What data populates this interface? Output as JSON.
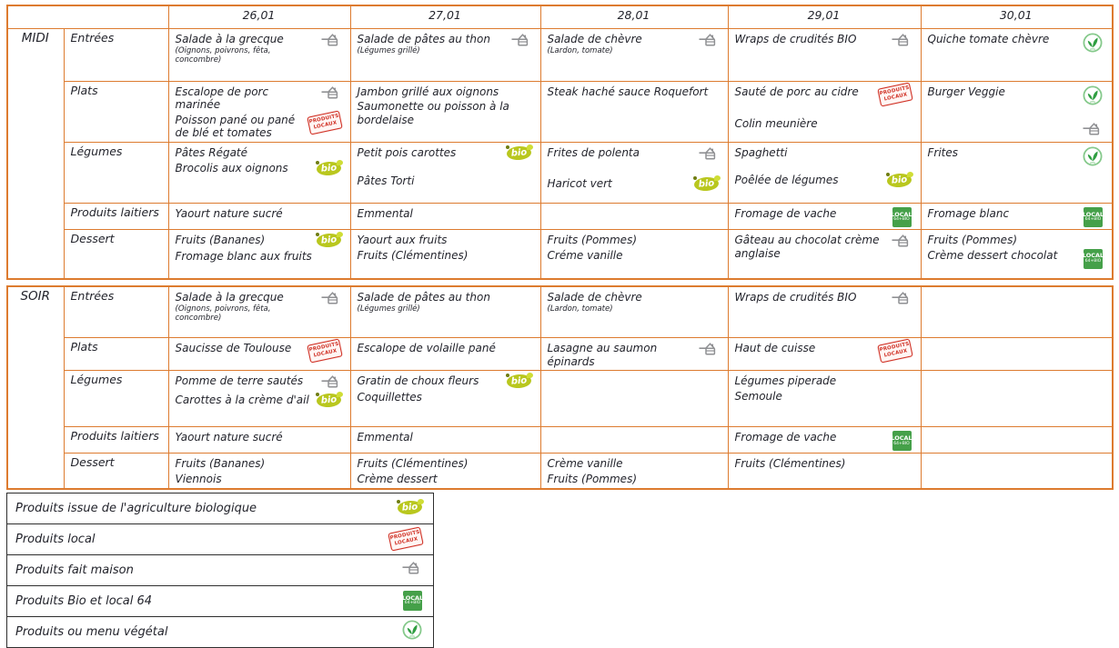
{
  "colors": {
    "table_border": "#dd7b2f",
    "text": "#23242c",
    "legend_border": "#2e2e2e",
    "bio_green": "#b9c71e",
    "stamp_red": "#d03024",
    "local64_green": "#45a049",
    "vegetal_green": "#2f9e41",
    "fait_maison_gray": "#8f9093"
  },
  "days": [
    "26,01",
    "27,01",
    "28,01",
    "29,01",
    "30,01"
  ],
  "icons": {
    "bio": {
      "label": "bio"
    },
    "local-stamp": {
      "line1": "PRODUITS",
      "line2": "LOCAUX"
    },
    "local64": {
      "line1": "LOCAL",
      "line2": "64+BIO"
    },
    "fait-maison": {
      "label": "fait maison"
    },
    "vegetal": {
      "label": "végétal"
    }
  },
  "sections": [
    {
      "label": "MIDI",
      "rows": [
        {
          "label": "Entrées",
          "cells": [
            [
              {
                "text": "Salade à la grecque",
                "icon": "fait-maison",
                "sub": "(Oignons, poivrons, fêta, concombre)"
              }
            ],
            [
              {
                "text": "Salade de pâtes au thon",
                "icon": "fait-maison",
                "sub": "(Légumes grillé)"
              }
            ],
            [
              {
                "text": "Salade de chèvre",
                "icon": "fait-maison",
                "sub": "(Lardon, tomate)"
              }
            ],
            [
              {
                "text": "Wraps de crudités BIO",
                "icon": "fait-maison"
              }
            ],
            [
              {
                "text": "Quiche tomate chèvre",
                "icon": "vegetal"
              }
            ]
          ]
        },
        {
          "label": "Plats",
          "cells": [
            [
              {
                "text": "Escalope de porc marinée",
                "icon": "fait-maison"
              },
              {
                "text": "Poisson pané ou pané de blé et tomates",
                "icon": "local-stamp"
              }
            ],
            [
              {
                "text": "Jambon grillé aux oignons"
              },
              {
                "text": "Saumonette ou poisson à la bordelaise"
              }
            ],
            [
              {
                "text": "Steak haché sauce Roquefort"
              }
            ],
            [
              {
                "text": "Sauté de porc au cidre",
                "icon": "local-stamp"
              },
              {
                "text": "Colin meunière",
                "gap": true
              }
            ],
            [
              {
                "text": "Burger Veggie",
                "icon": "vegetal"
              },
              {
                "text": "",
                "icon": "fait-maison",
                "gap": true
              }
            ]
          ]
        },
        {
          "label": "Légumes",
          "cells": [
            [
              {
                "text": "Pâtes Régaté"
              },
              {
                "text": "Brocolis aux oignons",
                "icon": "bio"
              }
            ],
            [
              {
                "text": "Petit pois carottes",
                "icon": "bio"
              },
              {
                "text": "Pâtes Torti",
                "gap": true
              }
            ],
            [
              {
                "text": "Frites de polenta",
                "icon": "fait-maison"
              },
              {
                "text": "Haricot vert",
                "icon": "bio",
                "gap": true
              }
            ],
            [
              {
                "text": "Spaghetti"
              },
              {
                "text": "Poêlée de légumes",
                "icon": "bio",
                "gap": true
              }
            ],
            [
              {
                "text": "Frites",
                "icon": "vegetal"
              }
            ]
          ]
        },
        {
          "label": "Produits laitiers",
          "cells": [
            [
              {
                "text": "Yaourt nature sucré"
              }
            ],
            [
              {
                "text": "Emmental"
              }
            ],
            [],
            [
              {
                "text": "Fromage de vache",
                "icon": "local64"
              }
            ],
            [
              {
                "text": "Fromage blanc",
                "icon": "local64"
              }
            ]
          ]
        },
        {
          "label": "Dessert",
          "cells": [
            [
              {
                "text": "Fruits (Bananes)",
                "icon": "bio"
              },
              {
                "text": "Fromage blanc aux fruits"
              }
            ],
            [
              {
                "text": "Yaourt aux fruits"
              },
              {
                "text": "Fruits (Clémentines)"
              }
            ],
            [
              {
                "text": "Fruits (Pommes)"
              },
              {
                "text": "Créme vanille"
              }
            ],
            [
              {
                "text": "Gâteau au chocolat crème anglaise",
                "icon": "fait-maison"
              }
            ],
            [
              {
                "text": "Fruits (Pommes)"
              },
              {
                "text": "Crème dessert chocolat",
                "icon": "local64"
              }
            ]
          ]
        }
      ]
    },
    {
      "label": "SOIR",
      "rows": [
        {
          "label": "Entrées",
          "cells": [
            [
              {
                "text": "Salade à la grecque",
                "icon": "fait-maison",
                "sub": "(Oignons, poivrons, fêta, concombre)"
              }
            ],
            [
              {
                "text": "Salade de pâtes au thon",
                "sub": "(Légumes grillé)"
              }
            ],
            [
              {
                "text": "Salade de chèvre",
                "sub": "(Lardon, tomate)"
              }
            ],
            [
              {
                "text": "Wraps de crudités BIO",
                "icon": "fait-maison"
              }
            ],
            []
          ]
        },
        {
          "label": "Plats",
          "cells": [
            [
              {
                "text": "Saucisse de Toulouse",
                "icon": "local-stamp"
              }
            ],
            [
              {
                "text": "Escalope de volaille pané"
              }
            ],
            [
              {
                "text": "Lasagne au saumon épinards",
                "icon": "fait-maison"
              }
            ],
            [
              {
                "text": "Haut de cuisse",
                "icon": "local-stamp"
              }
            ],
            []
          ]
        },
        {
          "label": "Légumes",
          "cells": [
            [
              {
                "text": "Pomme de terre sautés",
                "icon": "fait-maison"
              },
              {
                "text": "Carottes à la crème d'ail",
                "icon": "bio"
              }
            ],
            [
              {
                "text": "Gratin de choux fleurs",
                "icon": "bio"
              },
              {
                "text": "Coquillettes"
              }
            ],
            [],
            [
              {
                "text": "Légumes piperade"
              },
              {
                "text": "Semoule"
              }
            ],
            []
          ]
        },
        {
          "label": "Produits laitiers",
          "cells": [
            [
              {
                "text": "Yaourt nature sucré"
              }
            ],
            [
              {
                "text": "Emmental"
              }
            ],
            [],
            [
              {
                "text": "Fromage de vache",
                "icon": "local64"
              }
            ],
            []
          ]
        },
        {
          "label": "Dessert",
          "cells": [
            [
              {
                "text": "Fruits (Bananes)"
              },
              {
                "text": "Viennois"
              }
            ],
            [
              {
                "text": "Fruits (Clémentines)"
              },
              {
                "text": "Crème dessert"
              }
            ],
            [
              {
                "text": "Crème vanille"
              },
              {
                "text": "Fruits (Pommes)"
              }
            ],
            [
              {
                "text": "Fruits (Clémentines)"
              }
            ],
            []
          ]
        }
      ]
    }
  ],
  "legend": [
    {
      "label": "Produits issue de l'agriculture biologique",
      "icon": "bio"
    },
    {
      "label": "Produits local",
      "icon": "local-stamp"
    },
    {
      "label": "Produits fait maison",
      "icon": "fait-maison"
    },
    {
      "label": "Produits Bio et local 64",
      "icon": "local64"
    },
    {
      "label": "Produits ou menu  végétal",
      "icon": "vegetal"
    }
  ]
}
